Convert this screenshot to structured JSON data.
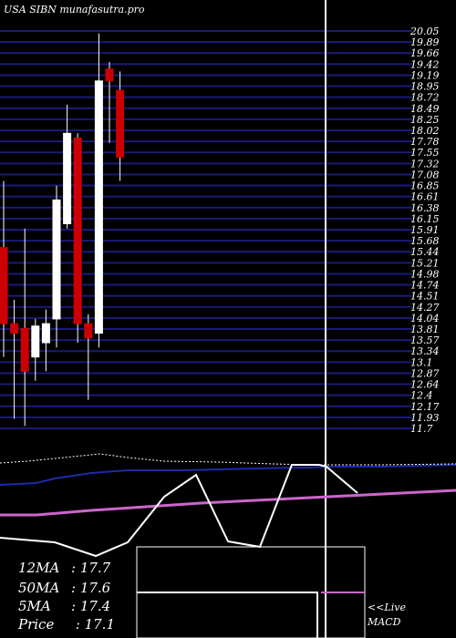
{
  "header": {
    "title": "USA SIBN munafasutra.pro"
  },
  "price_axis": {
    "ticks": [
      "20.05",
      "19.89",
      "19.66",
      "19.42",
      "19.19",
      "18.95",
      "18.72",
      "18.49",
      "18.25",
      "18.02",
      "17.78",
      "17.55",
      "17.32",
      "17.08",
      "16.85",
      "16.61",
      "16.38",
      "16.15",
      "15.91",
      "15.68",
      "15.44",
      "15.21",
      "14.98",
      "14.74",
      "14.51",
      "14.27",
      "14.04",
      "13.81",
      "13.57",
      "13.34",
      "13.1",
      "12.87",
      "12.64",
      "12.4",
      "12.17",
      "11.93",
      "11.7"
    ]
  },
  "stats": {
    "ma12": {
      "label": "12MA",
      "value": ": 17.7"
    },
    "ma50": {
      "label": "50MA",
      "value": ": 17.6"
    },
    "ma5": {
      "label": "5MA",
      "value": ": 17.4"
    },
    "price": {
      "label": "Price",
      "value": "  : 17.1"
    }
  },
  "macd_note": {
    "line1": "<<Live",
    "line2": "MACD"
  },
  "colors": {
    "up": "#ffffff",
    "down": "#cc0000",
    "grid": "#1a1a7a",
    "ma_blue": "#1e2aa8",
    "ma_pink": "#cc66cc"
  },
  "chart_data": {
    "type": "candlestick",
    "title": "USA SIBN munafasutra.pro",
    "ylim": [
      11.7,
      20.05
    ],
    "candles": [
      {
        "o": 15.5,
        "h": 16.9,
        "l": 13.2,
        "c": 13.9
      },
      {
        "o": 13.9,
        "h": 14.4,
        "l": 11.9,
        "c": 13.7
      },
      {
        "o": 13.8,
        "h": 15.9,
        "l": 11.75,
        "c": 12.9
      },
      {
        "o": 13.2,
        "h": 14.0,
        "l": 12.7,
        "c": 13.85
      },
      {
        "o": 13.5,
        "h": 14.2,
        "l": 12.9,
        "c": 13.9
      },
      {
        "o": 14.0,
        "h": 16.8,
        "l": 13.4,
        "c": 16.5
      },
      {
        "o": 16.0,
        "h": 18.5,
        "l": 15.9,
        "c": 17.9
      },
      {
        "o": 17.8,
        "h": 17.9,
        "l": 13.5,
        "c": 13.9
      },
      {
        "o": 13.9,
        "h": 14.1,
        "l": 12.3,
        "c": 13.6
      },
      {
        "o": 13.7,
        "h": 20.0,
        "l": 13.4,
        "c": 19.0
      },
      {
        "o": 19.25,
        "h": 19.4,
        "l": 17.7,
        "c": 19.0
      },
      {
        "o": 18.8,
        "h": 19.2,
        "l": 16.9,
        "c": 17.4
      }
    ]
  }
}
